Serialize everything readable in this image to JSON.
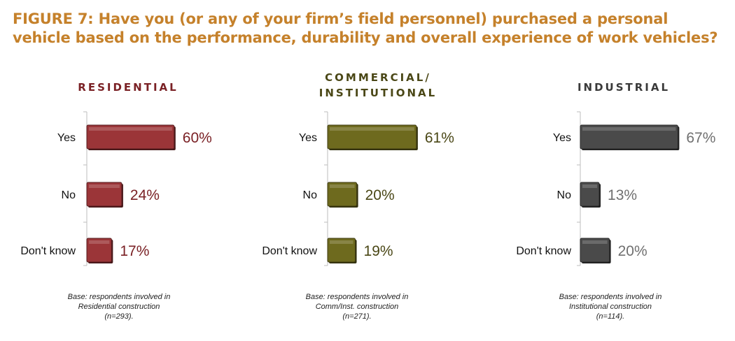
{
  "title_lines": [
    "FIGURE 7: Have you (or any of your firm’s field personnel) purchased a personal",
    "vehicle based on the performance, durability and overall experience of work vehicles?"
  ],
  "chart_data": [
    {
      "type": "bar",
      "orientation": "horizontal",
      "title_lines": [
        "RESIDENTIAL"
      ],
      "categories": [
        "Yes",
        "No",
        "Don't know"
      ],
      "values": [
        60,
        24,
        17
      ],
      "labels": [
        "60%",
        "24%",
        "17%"
      ],
      "color": "#9b3538",
      "text_color": "#7a2125",
      "base_lines": [
        "Base: respondents involved in",
        "Residential construction",
        "(n=293)."
      ]
    },
    {
      "type": "bar",
      "orientation": "horizontal",
      "title_lines": [
        "COMMERCIAL/",
        "INSTITUTIONAL"
      ],
      "categories": [
        "Yes",
        "No",
        "Don't know"
      ],
      "values": [
        61,
        20,
        19
      ],
      "labels": [
        "61%",
        "20%",
        "19%"
      ],
      "color": "#6e6a1e",
      "text_color": "#4a4716",
      "base_lines": [
        "Base: respondents involved in",
        "Comm/Inst. construction",
        "(n=271)."
      ]
    },
    {
      "type": "bar",
      "orientation": "horizontal",
      "title_lines": [
        "INDUSTRIAL"
      ],
      "categories": [
        "Yes",
        "No",
        "Don't know"
      ],
      "values": [
        67,
        13,
        20
      ],
      "labels": [
        "67%",
        "13%",
        "20%"
      ],
      "color": "#4a4a4a",
      "text_color": "#3a3a3a",
      "value_color": "#707070",
      "base_lines": [
        "Base: respondents involved in",
        "Institutional construction",
        "(n=114)."
      ]
    }
  ]
}
